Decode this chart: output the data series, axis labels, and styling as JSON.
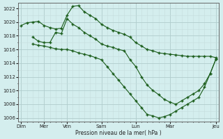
{
  "background_color": "#d4eeee",
  "grid_color_major": "#b0cccc",
  "grid_color_minor": "#c4dddd",
  "line_color": "#1a5c1a",
  "xlabel": "Pression niveau de la mer( hPa )",
  "ylim": [
    1005.5,
    1022.8
  ],
  "ytick_step": 2,
  "series1_x": [
    0,
    1,
    2,
    3,
    4,
    5,
    6,
    7,
    8,
    9,
    10,
    11,
    12,
    13,
    14,
    15,
    16,
    17,
    18,
    19,
    20,
    21,
    22,
    23,
    24,
    25,
    26,
    27,
    28,
    29,
    30,
    31,
    32,
    33,
    34
  ],
  "series1_y": [
    1019.5,
    1019.9,
    1020.0,
    1020.1,
    1019.5,
    1019.2,
    1019.0,
    1019.1,
    1021.0,
    1022.3,
    1022.4,
    1021.5,
    1021.0,
    1020.5,
    1019.7,
    1019.2,
    1018.8,
    1018.5,
    1018.2,
    1017.8,
    1017.0,
    1016.5,
    1016.0,
    1015.8,
    1015.5,
    1015.4,
    1015.3,
    1015.2,
    1015.1,
    1015.0,
    1015.0,
    1015.0,
    1015.0,
    1015.0,
    1014.8
  ],
  "series2_x": [
    2,
    3,
    4,
    5,
    6,
    7,
    8,
    9,
    10,
    11,
    12,
    13,
    14,
    15,
    16,
    17,
    18,
    19,
    20,
    21,
    22,
    23,
    24,
    25,
    26,
    27,
    28,
    29,
    30,
    31,
    32,
    33,
    34
  ],
  "series2_y": [
    1017.8,
    1017.2,
    1017.0,
    1017.0,
    1018.5,
    1018.3,
    1020.5,
    1019.7,
    1019.2,
    1018.5,
    1018.0,
    1017.5,
    1016.8,
    1016.5,
    1016.3,
    1016.0,
    1015.8,
    1014.5,
    1013.5,
    1012.0,
    1010.8,
    1010.0,
    1009.4,
    1008.7,
    1008.3,
    1008.0,
    1008.5,
    1009.0,
    1009.5,
    1010.0,
    1011.0,
    1012.5,
    1014.6
  ],
  "series3_x": [
    2,
    3,
    4,
    5,
    6,
    7,
    8,
    9,
    10,
    11,
    12,
    13,
    14,
    15,
    16,
    17,
    18,
    19,
    20,
    21,
    22,
    23,
    24,
    25,
    26,
    27,
    28,
    29,
    30,
    31,
    32,
    33,
    34
  ],
  "series3_y": [
    1016.8,
    1016.6,
    1016.5,
    1016.3,
    1016.1,
    1016.0,
    1016.0,
    1015.8,
    1015.5,
    1015.3,
    1015.1,
    1014.8,
    1014.5,
    1013.5,
    1012.5,
    1011.5,
    1010.5,
    1009.5,
    1008.5,
    1007.5,
    1006.5,
    1006.3,
    1006.0,
    1006.2,
    1006.5,
    1007.0,
    1007.5,
    1008.0,
    1008.5,
    1009.0,
    1010.5,
    1012.5,
    1014.6
  ],
  "x_day_labels": {
    "0": "Dim",
    "4": "Mer",
    "8": "Ven",
    "14": "Sam",
    "20": "Lun",
    "26": "Mar",
    "34": "Jeu"
  },
  "xlim": [
    -0.5,
    34.5
  ],
  "n_minor_x": 35
}
